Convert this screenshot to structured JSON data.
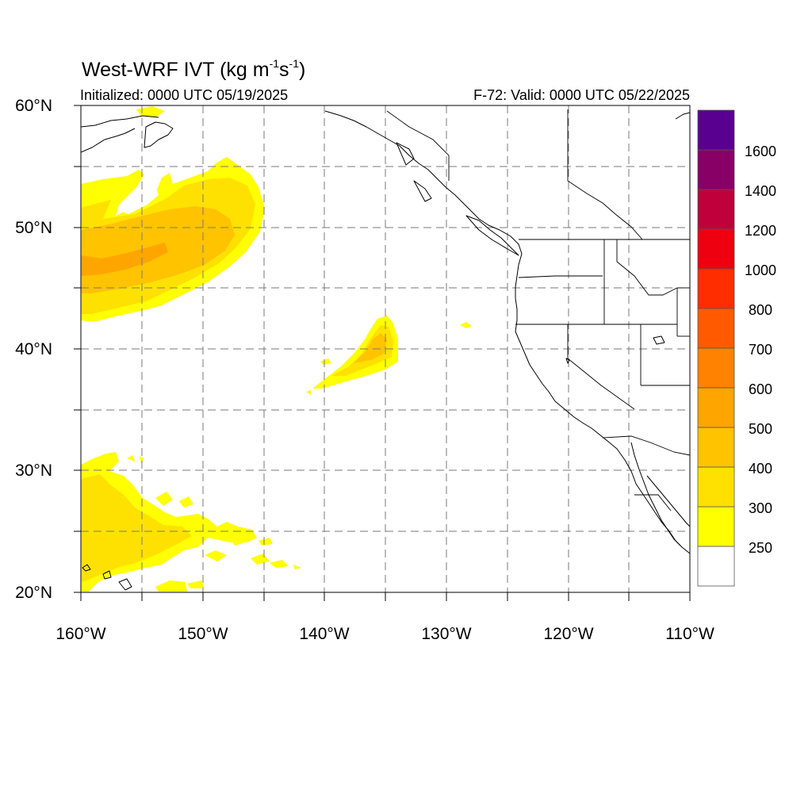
{
  "title": {
    "main": "West-WRF IVT (kg m",
    "exp1": "-1",
    "mid": "s",
    "exp2": "-1",
    "close": ")"
  },
  "initialized": "Initialized: 0000 UTC 05/19/2025",
  "valid": "F-72: Valid: 0000 UTC 05/22/2025",
  "axes": {
    "lat_labels": [
      "60°N",
      "50°N",
      "40°N",
      "30°N",
      "20°N"
    ],
    "lon_labels": [
      "160°W",
      "150°W",
      "140°W",
      "130°W",
      "120°W",
      "110°W"
    ],
    "lat_range": [
      20,
      60
    ],
    "lon_range": [
      -160,
      -110
    ],
    "grid": "dashed every 5°"
  },
  "colorbar": {
    "labels": [
      "250",
      "300",
      "400",
      "500",
      "600",
      "700",
      "800",
      "1000",
      "1200",
      "1400",
      "1600"
    ],
    "colors": [
      "#ffffff",
      "#ffff00",
      "#ffe100",
      "#ffc300",
      "#ffa500",
      "#ff8200",
      "#ff5a00",
      "#ff2d00",
      "#ee0010",
      "#c0003a",
      "#880066",
      "#5a0090"
    ]
  },
  "colors": {
    "level_250": "#ffff00",
    "level_300": "#ffe100",
    "level_400": "#ffc300",
    "level_500": "#ffa500"
  }
}
